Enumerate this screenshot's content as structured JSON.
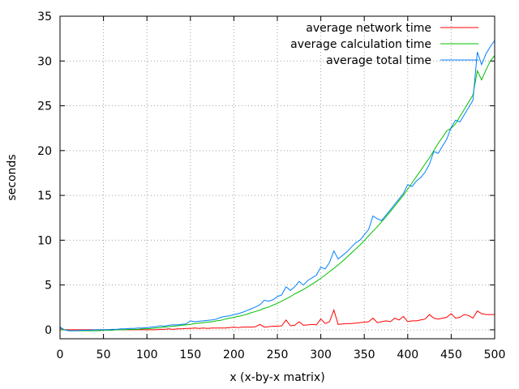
{
  "chart_data": {
    "type": "line",
    "title": "",
    "xlabel": "x (x-by-x matrix)",
    "ylabel": "seconds",
    "xlim": [
      0,
      500
    ],
    "ylim": [
      -1,
      35
    ],
    "xticks": [
      0,
      50,
      100,
      150,
      200,
      250,
      300,
      350,
      400,
      450,
      500
    ],
    "yticks": [
      0,
      5,
      10,
      15,
      20,
      25,
      30,
      35
    ],
    "grid": true,
    "legend_position": "top-right",
    "x": [
      0,
      5,
      10,
      15,
      20,
      25,
      30,
      35,
      40,
      45,
      50,
      55,
      60,
      65,
      70,
      75,
      80,
      85,
      90,
      95,
      100,
      105,
      110,
      115,
      120,
      125,
      130,
      135,
      140,
      145,
      150,
      155,
      160,
      165,
      170,
      175,
      180,
      185,
      190,
      195,
      200,
      205,
      210,
      215,
      220,
      225,
      230,
      235,
      240,
      245,
      250,
      255,
      260,
      265,
      270,
      275,
      280,
      285,
      290,
      295,
      300,
      305,
      310,
      315,
      320,
      325,
      330,
      335,
      340,
      345,
      350,
      355,
      360,
      365,
      370,
      375,
      380,
      385,
      390,
      395,
      400,
      405,
      410,
      415,
      420,
      425,
      430,
      435,
      440,
      445,
      450,
      455,
      460,
      465,
      470,
      475,
      480,
      485,
      490,
      495,
      500
    ],
    "series": [
      {
        "name": "average network time",
        "color": "#ff0000",
        "values": [
          0.2,
          0,
          0,
          0,
          0,
          0,
          0,
          0,
          0,
          0,
          0,
          0,
          0,
          0,
          0,
          0,
          0,
          0,
          0,
          0,
          0,
          0,
          0,
          0.05,
          0.05,
          0.1,
          0.05,
          0.1,
          0.1,
          0.15,
          0.15,
          0.2,
          0.15,
          0.2,
          0.15,
          0.2,
          0.2,
          0.2,
          0.2,
          0.25,
          0.3,
          0.25,
          0.3,
          0.3,
          0.3,
          0.35,
          0.6,
          0.3,
          0.35,
          0.4,
          0.4,
          0.45,
          1.1,
          0.45,
          0.5,
          0.9,
          0.5,
          0.55,
          0.6,
          0.55,
          1.2,
          0.7,
          0.9,
          2.2,
          0.6,
          0.65,
          0.7,
          0.7,
          0.75,
          0.8,
          0.85,
          0.9,
          1.3,
          0.8,
          0.9,
          1.0,
          0.9,
          1.3,
          1.1,
          1.5,
          0.9,
          1.0,
          1.0,
          1.1,
          1.2,
          1.7,
          1.3,
          1.2,
          1.3,
          1.4,
          1.8,
          1.3,
          1.4,
          1.7,
          1.6,
          1.3,
          2.1,
          1.8,
          1.7,
          1.7,
          1.7
        ]
      },
      {
        "name": "average calculation time",
        "color": "#00c000",
        "values": [
          0,
          0,
          -0.1,
          -0.1,
          -0.1,
          -0.1,
          -0.1,
          -0.1,
          -0.1,
          -0.1,
          -0.05,
          -0.05,
          -0.05,
          0,
          0,
          0,
          0.05,
          0.05,
          0.05,
          0.1,
          0.1,
          0.15,
          0.2,
          0.25,
          0.3,
          0.35,
          0.4,
          0.45,
          0.5,
          0.55,
          0.6,
          0.7,
          0.75,
          0.8,
          0.85,
          0.9,
          1.0,
          1.05,
          1.2,
          1.3,
          1.4,
          1.5,
          1.6,
          1.75,
          1.9,
          2.05,
          2.2,
          2.4,
          2.55,
          2.75,
          2.95,
          3.2,
          3.45,
          3.7,
          4.0,
          4.25,
          4.5,
          4.8,
          5.1,
          5.4,
          5.75,
          6.1,
          6.5,
          6.85,
          7.25,
          7.65,
          8.1,
          8.55,
          9.0,
          9.45,
          9.95,
          10.5,
          11.0,
          11.5,
          12.05,
          12.6,
          13.2,
          13.8,
          14.4,
          15.0,
          15.7,
          16.4,
          17.1,
          17.8,
          18.5,
          19.2,
          20.0,
          20.8,
          21.5,
          22.2,
          22.5,
          23.0,
          23.8,
          24.6,
          25.4,
          26.2,
          28.9,
          27.9,
          29.0,
          30.0,
          30.6
        ]
      },
      {
        "name": "average total time",
        "color": "#0080ff",
        "values": [
          0.3,
          0,
          -0.1,
          -0.1,
          -0.1,
          -0.05,
          -0.05,
          -0.05,
          0,
          0,
          0,
          0,
          0.05,
          0.05,
          0.1,
          0.1,
          0.15,
          0.15,
          0.2,
          0.2,
          0.25,
          0.3,
          0.35,
          0.45,
          0.4,
          0.5,
          0.55,
          0.55,
          0.6,
          0.65,
          1.0,
          0.9,
          0.95,
          1.0,
          1.05,
          1.1,
          1.2,
          1.4,
          1.5,
          1.55,
          1.7,
          1.8,
          1.95,
          2.15,
          2.35,
          2.55,
          2.8,
          3.3,
          3.2,
          3.35,
          3.7,
          3.9,
          4.8,
          4.4,
          4.8,
          5.4,
          5.0,
          5.5,
          5.8,
          6.1,
          7.0,
          6.8,
          7.5,
          8.8,
          7.9,
          8.3,
          8.7,
          9.2,
          9.7,
          10.0,
          10.6,
          11.2,
          12.7,
          12.4,
          12.2,
          12.8,
          13.4,
          14.0,
          14.6,
          15.2,
          16.2,
          16.0,
          16.6,
          17.0,
          17.6,
          18.5,
          19.9,
          19.7,
          20.5,
          21.3,
          22.6,
          23.4,
          23.2,
          24.0,
          24.8,
          25.6,
          31.0,
          29.6,
          30.8,
          31.6,
          32.3
        ]
      }
    ]
  }
}
